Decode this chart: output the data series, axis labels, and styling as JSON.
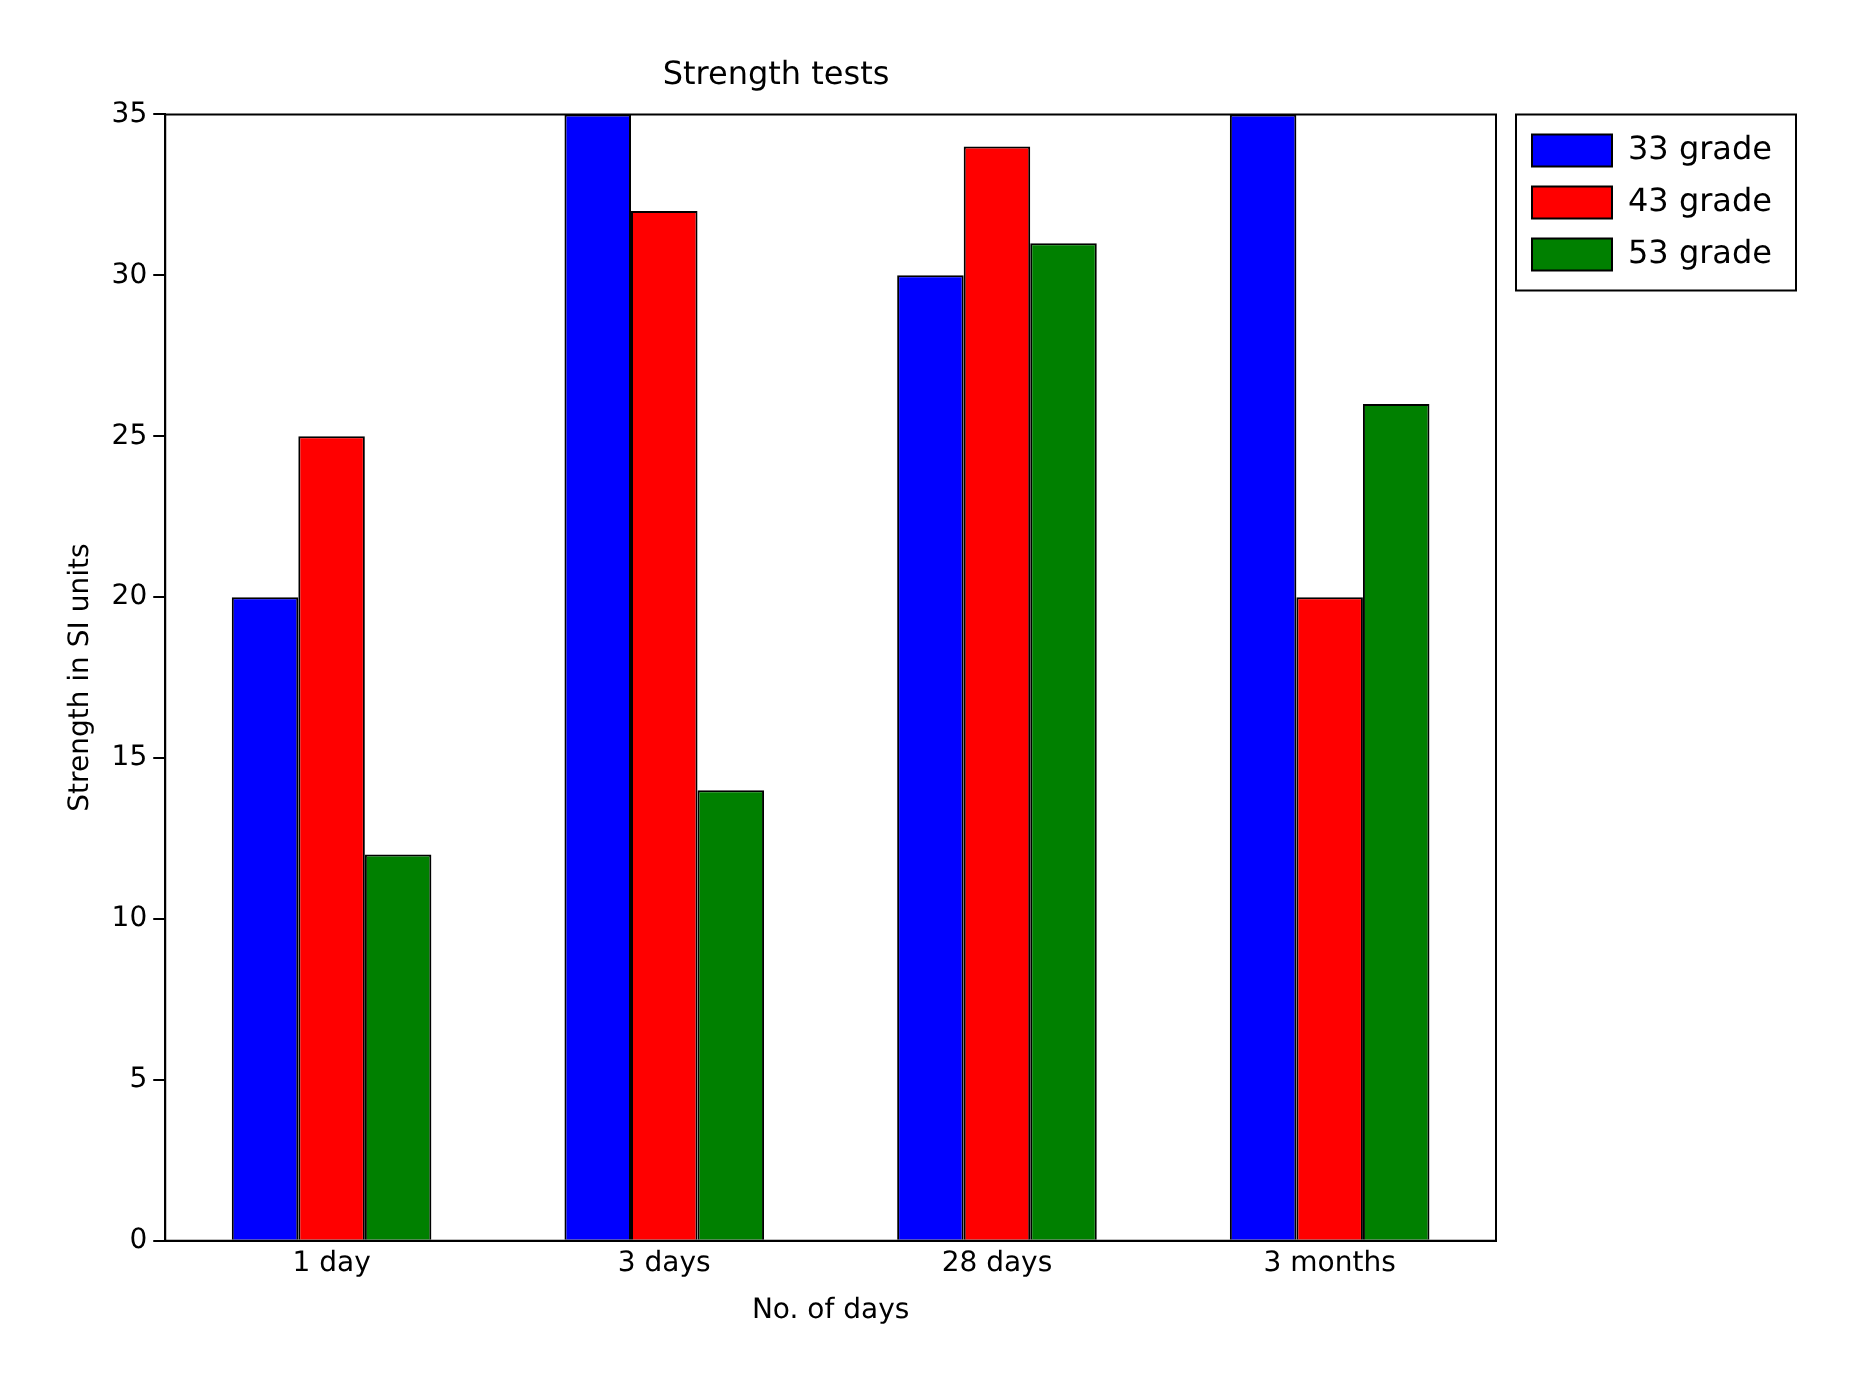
{
  "chart_data": {
    "type": "bar",
    "title": "Strength tests",
    "xlabel": "No. of days",
    "ylabel": "Strength in SI units",
    "categories": [
      "1 day",
      "3 days",
      "28 days",
      "3 months"
    ],
    "series": [
      {
        "name": "33 grade",
        "color": "#0000ff",
        "values": [
          20,
          35,
          30,
          35
        ]
      },
      {
        "name": "43 grade",
        "color": "#ff0000",
        "values": [
          25,
          32,
          34,
          20
        ]
      },
      {
        "name": "53 grade",
        "color": "#008000",
        "values": [
          12,
          14,
          31,
          26
        ]
      }
    ],
    "ylim": [
      0,
      35
    ],
    "yticks": [
      0,
      5,
      10,
      15,
      20,
      25,
      30,
      35
    ],
    "grid": false,
    "legend": "top right"
  }
}
